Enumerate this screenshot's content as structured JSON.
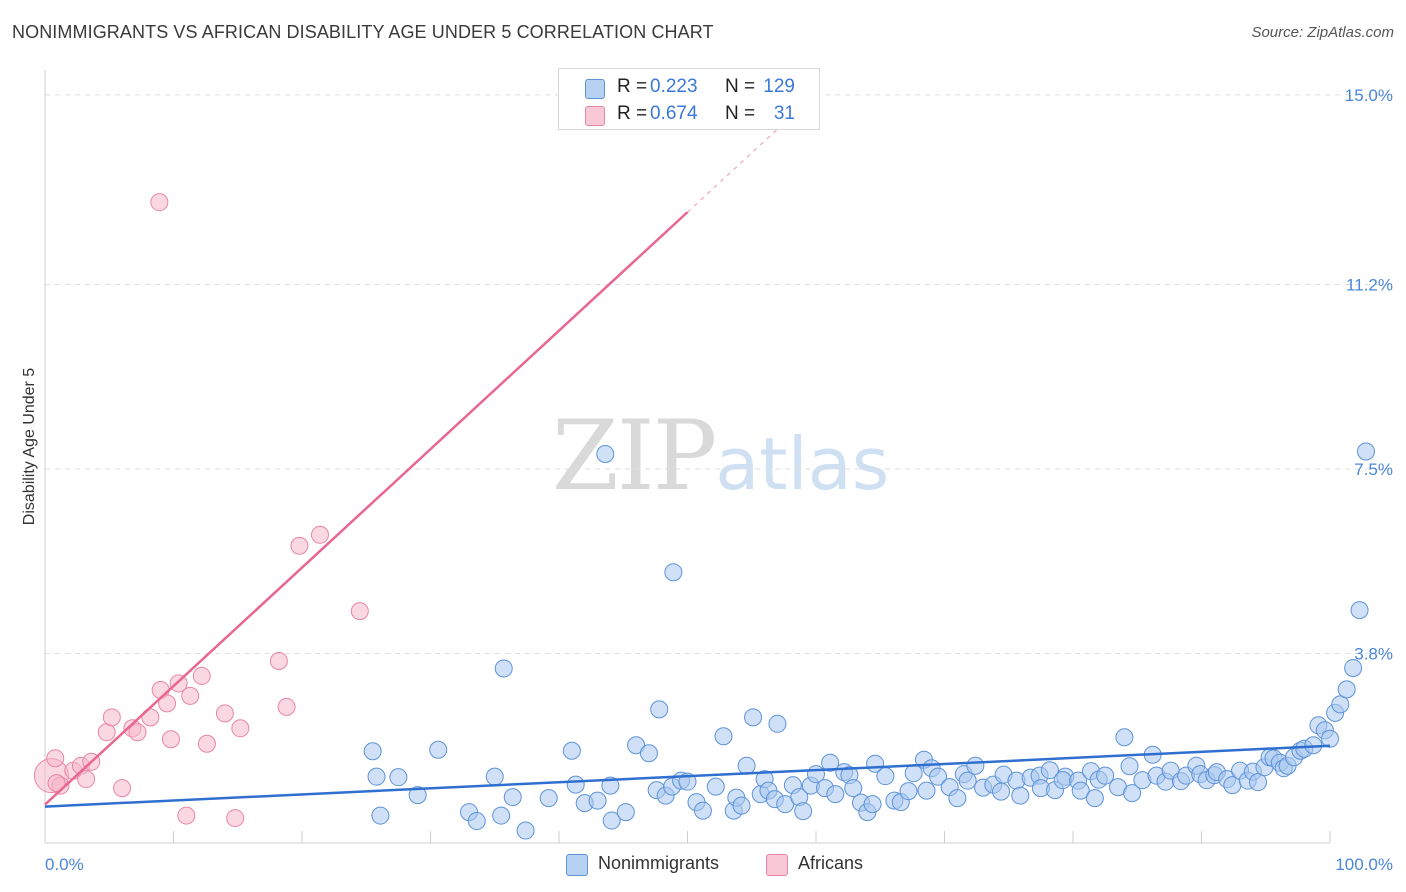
{
  "header": {
    "title": "NONIMMIGRANTS VS AFRICAN DISABILITY AGE UNDER 5 CORRELATION CHART",
    "source": "Source: ZipAtlas.com"
  },
  "watermark": {
    "zip": "ZIP",
    "atlas": "atlas"
  },
  "stats": [
    {
      "r_label": "R = ",
      "r_value": "0.223",
      "n_label": "N = ",
      "n_value": "129"
    },
    {
      "r_label": "R = ",
      "r_value": "0.674",
      "n_label": "N = ",
      "n_value": "31"
    }
  ],
  "legend": {
    "nonimmigrants": "Nonimmigrants",
    "africans": "Africans"
  },
  "colors": {
    "blue_fill": "#aac8f0",
    "blue_stroke": "#5e93d8",
    "blue_line": "#2f6fd0",
    "pink_fill": "#f6b8cb",
    "pink_stroke": "#e986a6",
    "pink_line": "#e8678f",
    "tick_text": "#4a86d9"
  },
  "chart_data": {
    "type": "scatter",
    "title": "NONIMMIGRANTS VS AFRICAN DISABILITY AGE UNDER 5 CORRELATION CHART",
    "xlabel": "",
    "ylabel": "Disability Age Under 5",
    "xlim": [
      0,
      100
    ],
    "ylim": [
      0,
      15.5
    ],
    "x_tick_labels": [
      "0.0%",
      "100.0%"
    ],
    "y_ticks": [
      3.8,
      7.5,
      11.2,
      15.0
    ],
    "y_tick_labels": [
      "3.8%",
      "7.5%",
      "11.2%",
      "15.0%"
    ],
    "grid": true,
    "series": [
      {
        "name": "Nonimmigrants",
        "r": 0.223,
        "n": 129,
        "trend": {
          "x0": 0,
          "y0": 0.73,
          "x1": 100,
          "y1": 1.95
        },
        "points": [
          [
            25.5,
            1.84
          ],
          [
            25.8,
            1.33
          ],
          [
            26.1,
            0.55
          ],
          [
            27.5,
            1.32
          ],
          [
            29.0,
            0.96
          ],
          [
            30.6,
            1.87
          ],
          [
            33.0,
            0.62
          ],
          [
            33.6,
            0.44
          ],
          [
            35.0,
            1.33
          ],
          [
            35.5,
            0.55
          ],
          [
            35.7,
            3.5
          ],
          [
            36.4,
            0.92
          ],
          [
            37.4,
            0.25
          ],
          [
            39.2,
            0.9
          ],
          [
            41.0,
            1.85
          ],
          [
            41.3,
            1.17
          ],
          [
            42.0,
            0.8
          ],
          [
            43.0,
            0.85
          ],
          [
            44.0,
            1.15
          ],
          [
            44.1,
            0.45
          ],
          [
            45.2,
            0.62
          ],
          [
            46.0,
            1.96
          ],
          [
            47.0,
            1.8
          ],
          [
            47.6,
            1.06
          ],
          [
            47.8,
            2.68
          ],
          [
            48.3,
            0.95
          ],
          [
            48.8,
            1.13
          ],
          [
            49.5,
            1.25
          ],
          [
            50.0,
            1.23
          ],
          [
            50.7,
            0.82
          ],
          [
            51.2,
            0.65
          ],
          [
            52.2,
            1.13
          ],
          [
            52.8,
            2.14
          ],
          [
            53.6,
            0.65
          ],
          [
            53.8,
            0.91
          ],
          [
            54.2,
            0.75
          ],
          [
            54.6,
            1.55
          ],
          [
            55.1,
            2.52
          ],
          [
            55.7,
            0.98
          ],
          [
            56.0,
            1.28
          ],
          [
            56.3,
            1.05
          ],
          [
            57.0,
            2.39
          ],
          [
            56.8,
            0.88
          ],
          [
            57.6,
            0.78
          ],
          [
            58.2,
            1.16
          ],
          [
            58.7,
            0.92
          ],
          [
            59.6,
            1.15
          ],
          [
            59.0,
            0.64
          ],
          [
            60.0,
            1.38
          ],
          [
            60.7,
            1.1
          ],
          [
            61.1,
            1.61
          ],
          [
            61.5,
            0.98
          ],
          [
            62.2,
            1.42
          ],
          [
            62.6,
            1.36
          ],
          [
            62.9,
            1.1
          ],
          [
            63.5,
            0.81
          ],
          [
            64.0,
            0.62
          ],
          [
            64.6,
            1.59
          ],
          [
            64.4,
            0.78
          ],
          [
            65.4,
            1.34
          ],
          [
            66.1,
            0.85
          ],
          [
            66.6,
            0.82
          ],
          [
            67.2,
            1.04
          ],
          [
            67.6,
            1.4
          ],
          [
            68.4,
            1.67
          ],
          [
            68.6,
            1.05
          ],
          [
            69.0,
            1.5
          ],
          [
            69.5,
            1.33
          ],
          [
            70.4,
            1.12
          ],
          [
            71.0,
            0.9
          ],
          [
            71.5,
            1.38
          ],
          [
            71.8,
            1.25
          ],
          [
            72.4,
            1.55
          ],
          [
            73.0,
            1.11
          ],
          [
            73.8,
            1.17
          ],
          [
            74.4,
            1.03
          ],
          [
            74.6,
            1.37
          ],
          [
            75.6,
            1.25
          ],
          [
            75.9,
            0.95
          ],
          [
            76.7,
            1.31
          ],
          [
            77.4,
            1.35
          ],
          [
            77.5,
            1.1
          ],
          [
            78.2,
            1.46
          ],
          [
            78.6,
            1.06
          ],
          [
            79.4,
            1.33
          ],
          [
            79.2,
            1.26
          ],
          [
            80.4,
            1.25
          ],
          [
            80.6,
            1.05
          ],
          [
            81.4,
            1.44
          ],
          [
            81.7,
            0.9
          ],
          [
            82.0,
            1.27
          ],
          [
            82.5,
            1.35
          ],
          [
            83.5,
            1.12
          ],
          [
            84.0,
            2.12
          ],
          [
            84.4,
            1.54
          ],
          [
            84.6,
            1.0
          ],
          [
            85.4,
            1.26
          ],
          [
            86.2,
            1.77
          ],
          [
            86.5,
            1.35
          ],
          [
            87.2,
            1.23
          ],
          [
            87.6,
            1.45
          ],
          [
            88.4,
            1.24
          ],
          [
            88.8,
            1.35
          ],
          [
            89.6,
            1.55
          ],
          [
            89.9,
            1.38
          ],
          [
            90.4,
            1.26
          ],
          [
            91.0,
            1.36
          ],
          [
            91.2,
            1.42
          ],
          [
            92.0,
            1.28
          ],
          [
            92.4,
            1.16
          ],
          [
            93.0,
            1.45
          ],
          [
            93.6,
            1.25
          ],
          [
            94.0,
            1.43
          ],
          [
            94.4,
            1.22
          ],
          [
            94.9,
            1.52
          ],
          [
            95.3,
            1.72
          ],
          [
            95.6,
            1.7
          ],
          [
            96.1,
            1.61
          ],
          [
            96.4,
            1.5
          ],
          [
            96.7,
            1.55
          ],
          [
            97.2,
            1.72
          ],
          [
            97.7,
            1.85
          ],
          [
            98.0,
            1.89
          ],
          [
            98.7,
            1.96
          ],
          [
            99.1,
            2.36
          ],
          [
            99.6,
            2.26
          ],
          [
            100.0,
            2.09
          ],
          [
            100.4,
            2.61
          ],
          [
            100.8,
            2.78
          ],
          [
            101.3,
            3.08
          ],
          [
            101.8,
            3.51
          ],
          [
            102.3,
            4.67
          ],
          [
            102.8,
            7.85
          ],
          [
            43.6,
            7.8
          ],
          [
            48.9,
            5.43
          ]
        ]
      },
      {
        "name": "Africans",
        "r": 0.674,
        "n": 31,
        "trend": {
          "x0": 0,
          "y0": 0.77,
          "x1": 50,
          "y1": 12.65,
          "dash_to": {
            "x": 58,
            "y": 14.55
          }
        },
        "points": [
          [
            0.5,
            1.35
          ],
          [
            1.2,
            1.15
          ],
          [
            2.2,
            1.45
          ],
          [
            2.8,
            1.55
          ],
          [
            3.2,
            1.28
          ],
          [
            3.6,
            1.63
          ],
          [
            4.8,
            2.22
          ],
          [
            5.2,
            2.52
          ],
          [
            6.0,
            1.1
          ],
          [
            6.8,
            2.3
          ],
          [
            7.2,
            2.22
          ],
          [
            8.2,
            2.52
          ],
          [
            9.0,
            3.07
          ],
          [
            9.5,
            2.8
          ],
          [
            9.8,
            2.08
          ],
          [
            10.4,
            3.2
          ],
          [
            11.0,
            0.55
          ],
          [
            11.3,
            2.95
          ],
          [
            12.2,
            3.35
          ],
          [
            12.6,
            1.99
          ],
          [
            14.0,
            2.6
          ],
          [
            14.8,
            0.5
          ],
          [
            15.2,
            2.3
          ],
          [
            18.2,
            3.65
          ],
          [
            18.8,
            2.73
          ],
          [
            19.8,
            5.96
          ],
          [
            21.4,
            6.18
          ],
          [
            24.5,
            4.65
          ],
          [
            8.9,
            12.85
          ],
          [
            0.8,
            1.7
          ],
          [
            0.9,
            1.2
          ]
        ]
      }
    ]
  }
}
